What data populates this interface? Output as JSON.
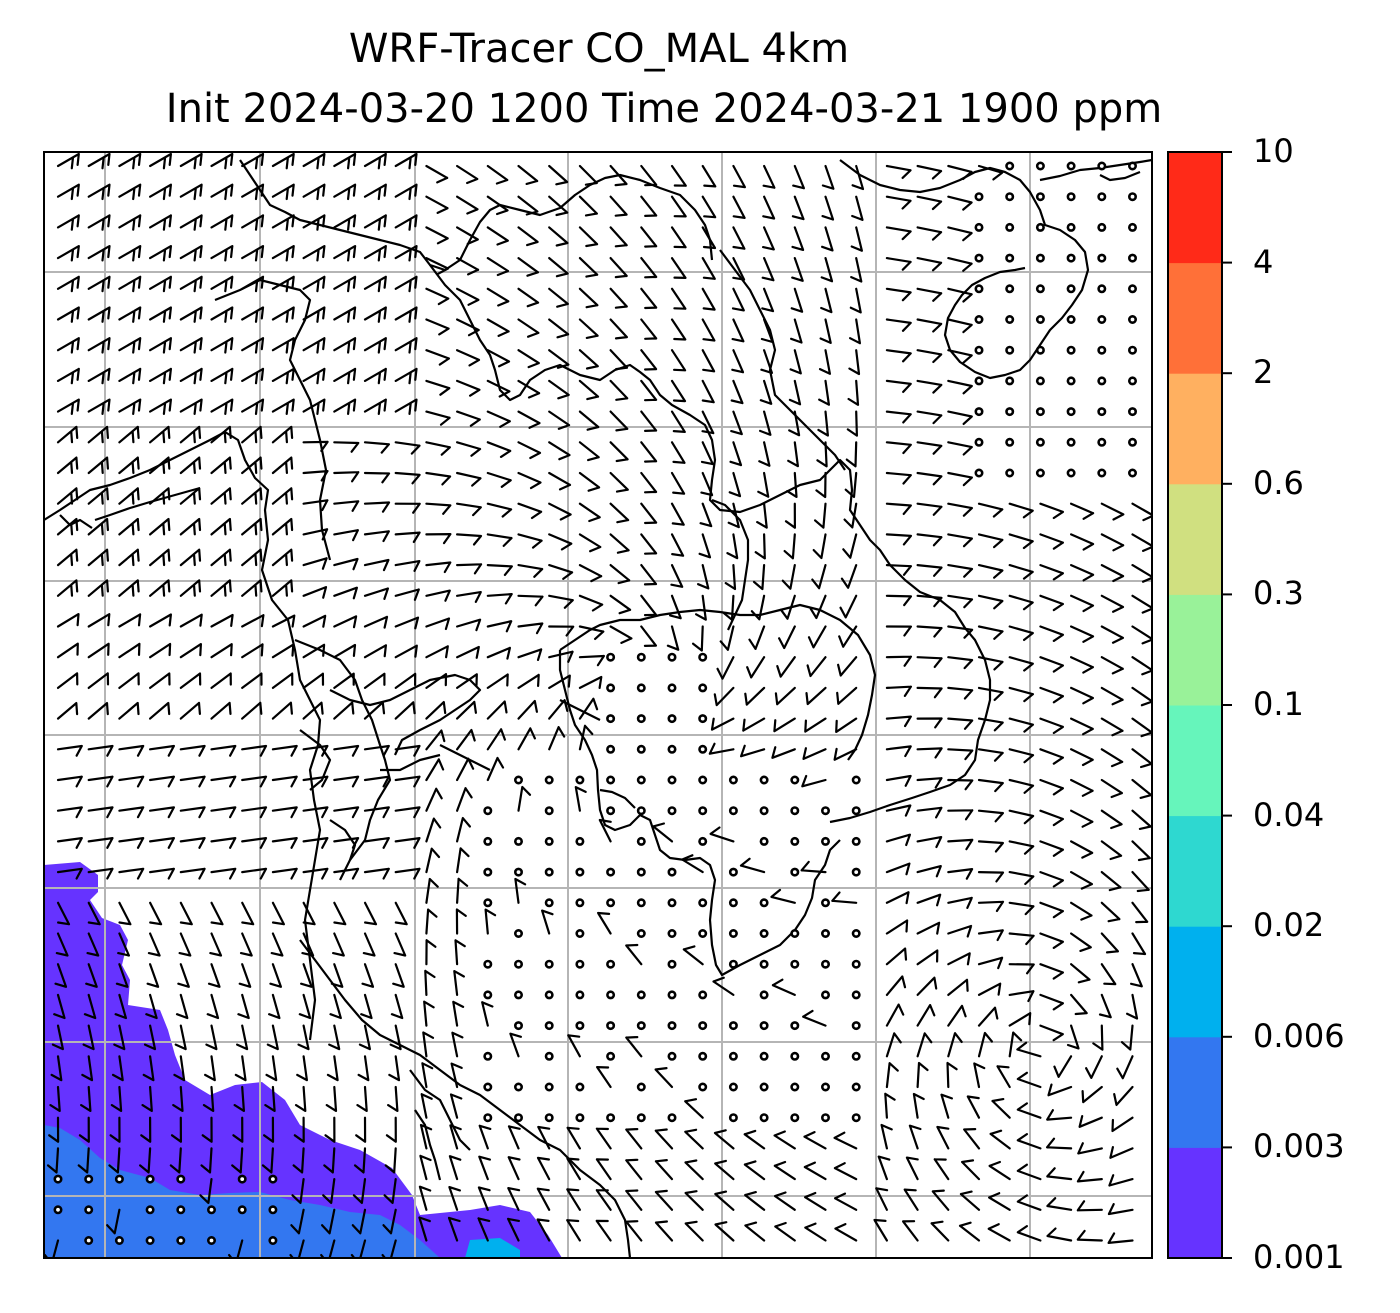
{
  "title": {
    "line1": "WRF-Tracer CO_MAL 4km",
    "line2": "Init 2024-03-20 1200 Time 2024-03-21 1900 ppm"
  },
  "colorbar": {
    "levels": [
      "0.001",
      "0.003",
      "0.006",
      "0.02",
      "0.04",
      "0.1",
      "0.3",
      "0.6",
      "2",
      "4",
      "10"
    ],
    "colors": [
      "#6633ff",
      "#3377f0",
      "#00b0ee",
      "#2ed8d0",
      "#66f5bb",
      "#99f299",
      "#d0e080",
      "#ffb060",
      "#ff7038",
      "#ff2a18"
    ]
  },
  "map": {
    "wind_style": "barbs",
    "gridlines": true,
    "tracer_fill_color": "#6633ff",
    "tracer_deep_color": "#3377f0",
    "coastline_color": "#000000"
  }
}
